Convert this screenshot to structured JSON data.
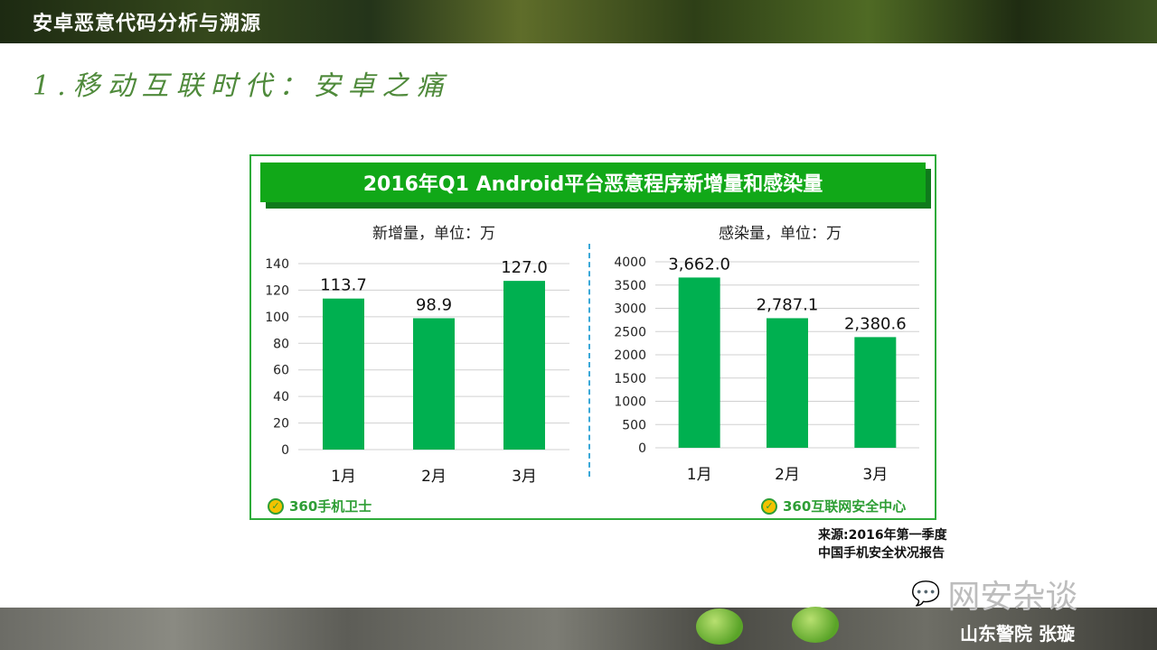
{
  "header": {
    "title": "安卓恶意代码分析与溯源"
  },
  "section": {
    "title": "1.移动互联时代：安卓之痛"
  },
  "panel": {
    "banner": "2016年Q1 Android平台恶意程序新增量和感染量",
    "logo_left": "360手机卫士",
    "logo_right": "360互联网安全中心"
  },
  "source": {
    "line1": "来源:2016年第一季度",
    "line2": "中国手机安全状况报告"
  },
  "footer": {
    "watermark": "网安杂谈",
    "author": "山东警院  张璇"
  },
  "colors": {
    "bar": "#00b050",
    "banner": "#11a818",
    "panel_border": "#2eab3a",
    "divider": "#3aa8d8"
  },
  "chart_data": [
    {
      "type": "bar",
      "title": "新增量，单位：万",
      "categories": [
        "1月",
        "2月",
        "3月"
      ],
      "values": [
        113.7,
        98.9,
        127.0
      ],
      "value_labels": [
        "113.7",
        "98.9",
        "127.0"
      ],
      "ylim": [
        0,
        140
      ],
      "yticks": [
        0,
        20,
        40,
        60,
        80,
        100,
        120,
        140
      ],
      "grid": true
    },
    {
      "type": "bar",
      "title": "感染量，单位：万",
      "categories": [
        "1月",
        "2月",
        "3月"
      ],
      "values": [
        3662.0,
        2787.1,
        2380.6
      ],
      "value_labels": [
        "3,662.0",
        "2,787.1",
        "2,380.6"
      ],
      "ylim": [
        0,
        4000
      ],
      "yticks": [
        0,
        500,
        1000,
        1500,
        2000,
        2500,
        3000,
        3500,
        4000
      ],
      "grid": true
    }
  ]
}
